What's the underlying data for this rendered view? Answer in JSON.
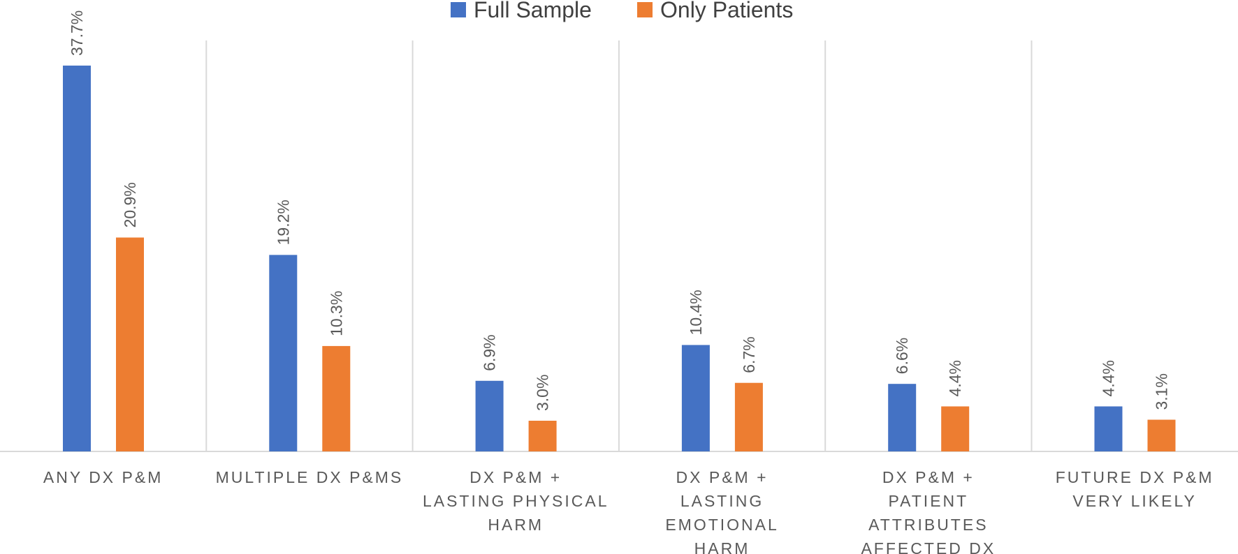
{
  "chart_data": {
    "type": "bar",
    "title": "",
    "xlabel": "",
    "ylabel": "",
    "ylim": [
      0,
      40
    ],
    "grid": "vertical separators between categories",
    "legend_position": "top-center",
    "categories": [
      [
        "ANY DX P&M"
      ],
      [
        "MULTIPLE DX P&MS"
      ],
      [
        "DX P&M  +",
        "LASTING PHYSICAL",
        "HARM"
      ],
      [
        "DX P&M  +",
        "LASTING",
        "EMOTIONAL",
        "HARM"
      ],
      [
        "DX P&M  +",
        "PATIENT",
        "ATTRIBUTES",
        "AFFECTED DX"
      ],
      [
        "FUTURE DX P&M",
        "VERY LIKELY"
      ]
    ],
    "series": [
      {
        "name": "Full Sample",
        "color": "#4472C4",
        "values": [
          37.7,
          19.2,
          6.9,
          10.4,
          6.6,
          4.4
        ],
        "labels": [
          "37.7%",
          "19.2%",
          "6.9%",
          "10.4%",
          "6.6%",
          "4.4%"
        ]
      },
      {
        "name": "Only Patients",
        "color": "#ED7D31",
        "values": [
          20.9,
          10.3,
          3.0,
          6.7,
          4.4,
          3.1
        ],
        "labels": [
          "20.9%",
          "10.3%",
          "3.0%",
          "6.7%",
          "4.4%",
          "3.1%"
        ]
      }
    ]
  }
}
